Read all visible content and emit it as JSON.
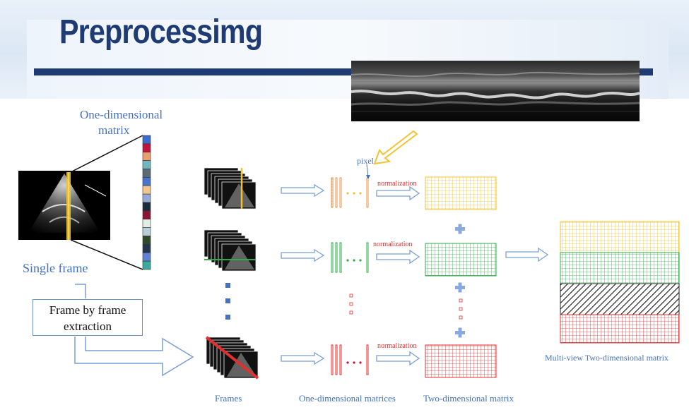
{
  "slide": {
    "title": "Preprocessimg"
  },
  "labels": {
    "one_dim_matrix_line1": "One-dimensional",
    "one_dim_matrix_line2": "matrix",
    "single_frame": "Single frame",
    "frame_extraction_line1": "Frame by frame",
    "frame_extraction_line2": "extraction",
    "pixel": "pixel",
    "normalization": "normalization",
    "frames": "Frames",
    "one_dim_matrices": "One-dimensional matrices",
    "two_dim_matrix": "Two-dimensional matrix",
    "multi_view": "Multi-view Two-dimensional matrix"
  },
  "colors": {
    "title": "#1f3b73",
    "label_blue": "#4472c4",
    "yellow": "#f2c230",
    "green": "#2eab4a",
    "red": "#e03030",
    "arrow": "#7a9fd6",
    "black": "#222222"
  },
  "pixel_strip_colors": [
    "#3b6cc9",
    "#c0143c",
    "#e8a070",
    "#6fb8c0",
    "#5f6a74",
    "#4b73c9",
    "#f2c68e",
    "#98a9d8",
    "#1b2b3a",
    "#8c1533",
    "#e4ece6",
    "#b9cfd6",
    "#2d4a2b",
    "#243550",
    "#5e82d6",
    "#3aa89a"
  ]
}
